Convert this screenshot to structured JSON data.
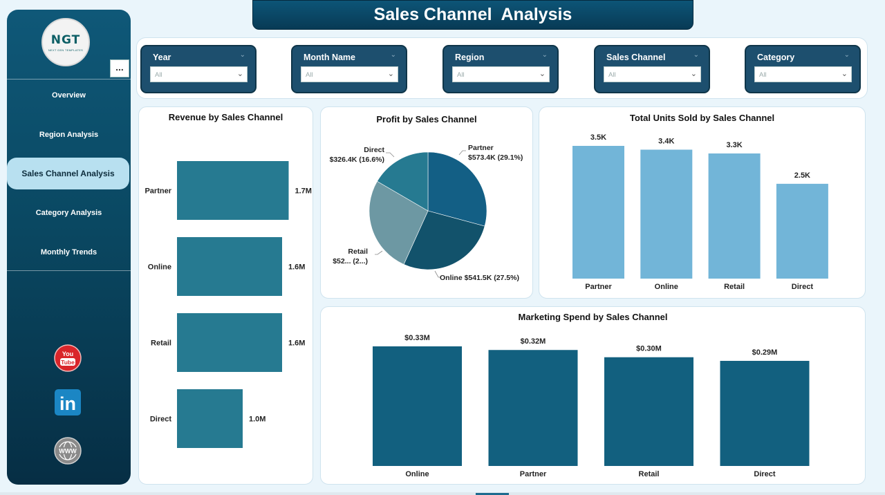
{
  "page": {
    "title": "Sales Channel  Analysis"
  },
  "logo": {
    "main": "NGT",
    "sub": "NEXT GEN TEMPLATES"
  },
  "sidebar": {
    "more_label": "...",
    "items": [
      {
        "label": "Overview",
        "active": false
      },
      {
        "label": "Region Analysis",
        "active": false
      },
      {
        "label": "Sales Channel Analysis",
        "active": true
      },
      {
        "label": "Category Analysis",
        "active": false
      },
      {
        "label": "Monthly Trends",
        "active": false
      }
    ],
    "social": [
      {
        "icon": "youtube-icon",
        "text": "You Tube"
      },
      {
        "icon": "linkedin-icon",
        "text": "in"
      },
      {
        "icon": "www-icon",
        "text": "WWW"
      }
    ]
  },
  "filters": [
    {
      "label": "Year",
      "value": "All"
    },
    {
      "label": "Month Name",
      "value": "All"
    },
    {
      "label": "Region",
      "value": "All"
    },
    {
      "label": "Sales Channel",
      "value": "All"
    },
    {
      "label": "Category",
      "value": "All"
    }
  ],
  "colors": {
    "bar_revenue": "#267a91",
    "bar_units": "#72b5d8",
    "bar_marketing": "#12607f",
    "pie": [
      "#135f85",
      "#12526b",
      "#6d98a3",
      "#267a91"
    ]
  },
  "chart_data": [
    {
      "id": "revenue",
      "type": "bar",
      "orientation": "horizontal",
      "title": "Revenue by Sales Channel",
      "categories": [
        "Partner",
        "Online",
        "Retail",
        "Direct"
      ],
      "values": [
        1.7,
        1.6,
        1.6,
        1.0
      ],
      "value_unit": "M",
      "data_labels": [
        "1.7M",
        "1.6M",
        "1.6M",
        "1.0M"
      ],
      "xlim": [
        0,
        2.0
      ],
      "grid": false
    },
    {
      "id": "profit",
      "type": "pie",
      "title": "Profit by Sales Channel",
      "categories": [
        "Partner",
        "Online",
        "Retail",
        "Direct"
      ],
      "values": [
        573.4,
        541.5,
        523.0,
        326.4
      ],
      "percentages": [
        29.1,
        27.5,
        26.6,
        16.6
      ],
      "data_labels": [
        [
          "Partner",
          "$573.4K (29.1%)"
        ],
        [
          "Online $541.5K (27.5%)"
        ],
        [
          "Retail",
          "$52... (2...)"
        ],
        [
          "Direct",
          "$326.4K (16.6%)"
        ]
      ]
    },
    {
      "id": "units",
      "type": "bar",
      "title": "Total Units Sold by Sales Channel",
      "categories": [
        "Partner",
        "Online",
        "Retail",
        "Direct"
      ],
      "values": [
        3.5,
        3.4,
        3.3,
        2.5
      ],
      "value_unit": "K",
      "data_labels": [
        "3.5K",
        "3.4K",
        "3.3K",
        "2.5K"
      ],
      "ylim": [
        0,
        3.5
      ],
      "grid": false
    },
    {
      "id": "marketing",
      "type": "bar",
      "title": "Marketing Spend by Sales Channel",
      "categories": [
        "Online",
        "Partner",
        "Retail",
        "Direct"
      ],
      "values": [
        0.33,
        0.32,
        0.3,
        0.29
      ],
      "value_unit": "$M",
      "data_labels": [
        "$0.33M",
        "$0.32M",
        "$0.30M",
        "$0.29M"
      ],
      "ylim": [
        0,
        0.33
      ],
      "grid": false
    }
  ]
}
